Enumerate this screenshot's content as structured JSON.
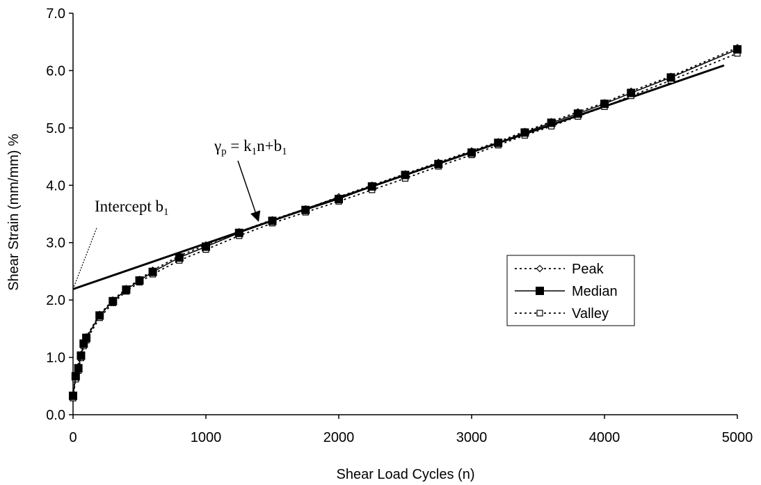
{
  "chart_data": {
    "type": "line",
    "xlabel": "Shear Load Cycles (n)",
    "ylabel": "Shear Strain (mm/mm) %",
    "xlim": [
      0,
      5000
    ],
    "ylim": [
      0,
      7
    ],
    "x_ticks": [
      "0",
      "1000",
      "2000",
      "3000",
      "4000",
      "5000"
    ],
    "y_ticks": [
      "0.0",
      "1.0",
      "2.0",
      "3.0",
      "4.0",
      "5.0",
      "6.0",
      "7.0"
    ],
    "grid": false,
    "legend_position": "right",
    "series": [
      {
        "name": "Peak",
        "marker": "diamond-open",
        "line": "dotted",
        "x": [
          0,
          20,
          40,
          60,
          80,
          100,
          200,
          300,
          400,
          500,
          600,
          800,
          1000,
          1250,
          1500,
          1750,
          2000,
          2250,
          2500,
          2750,
          3000,
          3200,
          3400,
          3600,
          3800,
          4000,
          4200,
          4500,
          5000
        ],
        "y": [
          0.34,
          0.7,
          0.84,
          1.05,
          1.26,
          1.36,
          1.75,
          2.0,
          2.2,
          2.36,
          2.52,
          2.77,
          2.96,
          3.19,
          3.4,
          3.59,
          3.8,
          4.0,
          4.2,
          4.4,
          4.6,
          4.76,
          4.94,
          5.11,
          5.28,
          5.44,
          5.64,
          5.9,
          6.4
        ]
      },
      {
        "name": "Median",
        "marker": "square-filled",
        "line": "solid",
        "x": [
          0,
          20,
          40,
          60,
          80,
          100,
          200,
          300,
          400,
          500,
          600,
          800,
          1000,
          1250,
          1500,
          1750,
          2000,
          2250,
          2500,
          2750,
          3000,
          3200,
          3400,
          3600,
          3800,
          4000,
          4200,
          4500,
          5000
        ],
        "y": [
          0.33,
          0.67,
          0.81,
          1.03,
          1.24,
          1.34,
          1.73,
          1.98,
          2.18,
          2.34,
          2.49,
          2.74,
          2.93,
          3.17,
          3.38,
          3.57,
          3.76,
          3.98,
          4.18,
          4.37,
          4.57,
          4.74,
          4.92,
          5.09,
          5.25,
          5.42,
          5.61,
          5.88,
          6.37
        ]
      },
      {
        "name": "Valley",
        "marker": "square-open",
        "line": "dotted",
        "x": [
          0,
          20,
          40,
          60,
          80,
          100,
          200,
          300,
          400,
          500,
          600,
          800,
          1000,
          1250,
          1500,
          1750,
          2000,
          2250,
          2500,
          2750,
          3000,
          3200,
          3400,
          3600,
          3800,
          4000,
          4200,
          4500,
          5000
        ],
        "y": [
          0.29,
          0.62,
          0.77,
          0.99,
          1.2,
          1.3,
          1.69,
          1.95,
          2.15,
          2.31,
          2.45,
          2.69,
          2.88,
          3.12,
          3.34,
          3.53,
          3.72,
          3.92,
          4.12,
          4.33,
          4.53,
          4.7,
          4.87,
          5.03,
          5.2,
          5.37,
          5.56,
          5.83,
          6.3
        ]
      }
    ],
    "fit_line": {
      "x": [
        0,
        4900
      ],
      "y": [
        2.19,
        6.09
      ],
      "style": "solid-thick"
    },
    "intercept_guide": {
      "x": [
        0,
        180
      ],
      "y": [
        2.19,
        3.27
      ],
      "style": "dotted"
    },
    "annotations": {
      "intercept_text": "Intercept b",
      "intercept_sub": "1",
      "formula_gamma": "γ",
      "formula_gamma_sub": "p",
      "formula_mid": " = k",
      "formula_k_sub": "1",
      "formula_tail": "n+b",
      "formula_b_sub": "1"
    }
  }
}
